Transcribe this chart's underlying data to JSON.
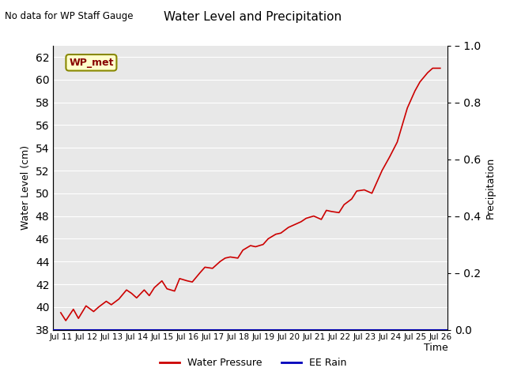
{
  "title": "Water Level and Precipitation",
  "top_left_note": "No data for WP Staff Gauge",
  "xlabel": "Time",
  "ylabel_left": "Water Level (cm)",
  "ylabel_right": "Precipitation",
  "legend_entries": [
    "Water Pressure",
    "EE Rain"
  ],
  "legend_colors": [
    "#cc0000",
    "#0000bb"
  ],
  "wp_met_label": "WP_met",
  "wp_met_bg": "#ffffcc",
  "wp_met_border": "#888800",
  "wp_met_text_color": "#880000",
  "ylim_left": [
    38,
    63
  ],
  "ylim_right": [
    0.0,
    1.0
  ],
  "yticks_left": [
    38,
    40,
    42,
    44,
    46,
    48,
    50,
    52,
    54,
    56,
    58,
    60,
    62
  ],
  "yticks_right": [
    0.0,
    0.2,
    0.4,
    0.6,
    0.8,
    1.0
  ],
  "xtick_labels": [
    "Jul 11",
    "Jul 12",
    "Jul 13",
    "Jul 14",
    "Jul 15",
    "Jul 16",
    "Jul 17",
    "Jul 18",
    "Jul 19",
    "Jul 20",
    "Jul 21",
    "Jul 22",
    "Jul 23",
    "Jul 24",
    "Jul 25",
    "Jul 26"
  ],
  "bg_color": "#e8e8e8",
  "line_color": "#cc0000",
  "rain_color": "#0000bb",
  "water_level_x": [
    0,
    0.2,
    0.5,
    0.7,
    1.0,
    1.3,
    1.5,
    1.8,
    2.0,
    2.3,
    2.6,
    2.8,
    3.0,
    3.3,
    3.5,
    3.7,
    4.0,
    4.2,
    4.5,
    4.7,
    5.0,
    5.2,
    5.5,
    5.7,
    6.0,
    6.3,
    6.5,
    6.7,
    7.0,
    7.2,
    7.5,
    7.7,
    8.0,
    8.2,
    8.5,
    8.7,
    9.0,
    9.3,
    9.5,
    9.7,
    10.0,
    10.3,
    10.5,
    10.7,
    11.0,
    11.2,
    11.5,
    11.7,
    12.0,
    12.3,
    12.5,
    12.7,
    13.0,
    13.3,
    13.5,
    13.7,
    14.0,
    14.2,
    14.5,
    14.7,
    15.0
  ],
  "water_level_y": [
    39.5,
    38.8,
    39.8,
    39.0,
    40.1,
    39.6,
    40.0,
    40.5,
    40.2,
    40.7,
    41.5,
    41.2,
    40.8,
    41.5,
    41.0,
    41.7,
    42.3,
    41.6,
    41.4,
    42.5,
    42.3,
    42.2,
    43.0,
    43.5,
    43.4,
    44.0,
    44.3,
    44.4,
    44.3,
    45.0,
    45.4,
    45.3,
    45.5,
    46.0,
    46.4,
    46.5,
    47.0,
    47.3,
    47.5,
    47.8,
    48.0,
    47.7,
    48.5,
    48.4,
    48.3,
    49.0,
    49.5,
    50.2,
    50.3,
    50.0,
    51.0,
    52.0,
    53.2,
    54.5,
    56.0,
    57.5,
    59.0,
    59.8,
    60.6,
    61.0,
    61.0
  ],
  "figsize": [
    6.4,
    4.8
  ],
  "dpi": 100
}
